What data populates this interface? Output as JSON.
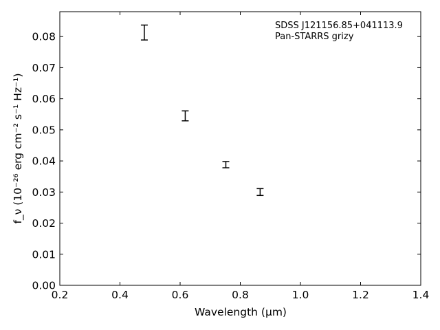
{
  "chart_data": {
    "type": "scatter",
    "title": "",
    "xlabel": "Wavelength (μm)",
    "ylabel": "f_ν (10⁻²⁶ erg cm⁻² s⁻¹ Hz⁻¹)",
    "xlim": [
      0.2,
      1.4
    ],
    "ylim": [
      0.0,
      0.088
    ],
    "xticks": [
      "0.2",
      "0.4",
      "0.6",
      "0.8",
      "1.0",
      "1.2",
      "1.4"
    ],
    "yticks": [
      "0.00",
      "0.01",
      "0.02",
      "0.03",
      "0.04",
      "0.05",
      "0.06",
      "0.07",
      "0.08"
    ],
    "grid": false,
    "annotations": [
      "SDSS J121156.85+041113.9",
      "Pan-STARRS grizy"
    ],
    "series": [
      {
        "marker": "errorbar",
        "color": "#000000",
        "points": [
          {
            "x": 0.481,
            "y": 0.0813,
            "yerr": 0.0024
          },
          {
            "x": 0.617,
            "y": 0.0545,
            "yerr": 0.0016
          },
          {
            "x": 0.752,
            "y": 0.0388,
            "yerr": 0.001
          },
          {
            "x": 0.866,
            "y": 0.03,
            "yerr": 0.0011
          }
        ]
      }
    ]
  }
}
